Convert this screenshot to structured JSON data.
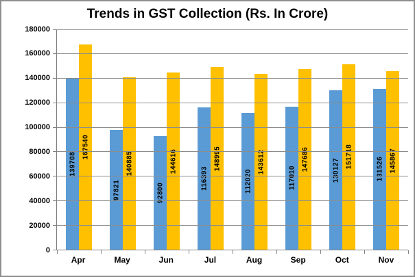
{
  "chart_data": {
    "type": "bar",
    "title": "Trends in GST Collection (Rs. In Crore)",
    "categories": [
      "Apr",
      "May",
      "Jun",
      "Jul",
      "Aug",
      "Sep",
      "Oct",
      "Nov"
    ],
    "series": [
      {
        "id": "blue-series",
        "color": "#5B9BD5",
        "values": [
          139708,
          97821,
          92800,
          116393,
          112020,
          117010,
          130127,
          131526
        ]
      },
      {
        "id": "yellow-series",
        "color": "#FFC000",
        "values": [
          167540,
          140885,
          144616,
          148995,
          143612,
          147686,
          151718,
          145867
        ]
      }
    ],
    "ylim": [
      0,
      180000
    ],
    "yticks": [
      0,
      20000,
      40000,
      60000,
      80000,
      100000,
      120000,
      140000,
      160000,
      180000
    ],
    "grid": true,
    "legend": "none",
    "data_labels": "inside-center-rotated-90"
  },
  "style": {
    "background": "#FFFFFF",
    "frame_border": "#8E8E8E",
    "grid_color": "#8C8C8C",
    "axis_color": "#7F7F7F",
    "text_color": "#000000"
  }
}
